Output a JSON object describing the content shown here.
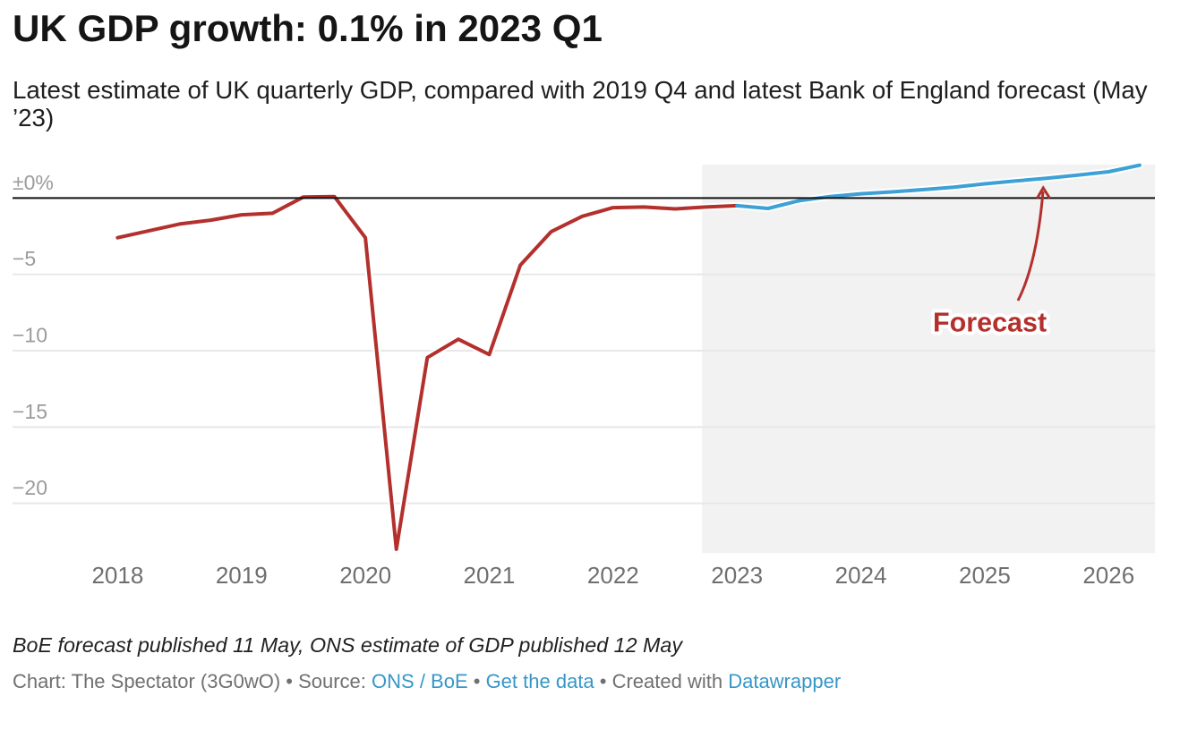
{
  "header": {
    "title": "UK GDP growth: 0.1% in 2023 Q1",
    "subtitle": "Latest estimate of UK quarterly GDP, compared with 2019 Q4 and latest Bank of England forecast (May ’23)"
  },
  "chart_data": {
    "type": "line",
    "unit": "%",
    "x_quarterly": true,
    "x_start": "2018 Q1",
    "series": [
      {
        "name": "ONS estimate",
        "color": "#b3302c",
        "start_index": 0,
        "quarters_from": "2018 Q1",
        "values": [
          -2.6,
          -2.15,
          -1.7,
          -1.45,
          -1.1,
          -1.0,
          0.07,
          0.1,
          -2.6,
          -23.0,
          -10.45,
          -9.25,
          -10.25,
          -4.4,
          -2.2,
          -1.2,
          -0.63,
          -0.59,
          -0.71,
          -0.59,
          -0.5
        ]
      },
      {
        "name": "Bank of England forecast",
        "color": "#3da1d5",
        "start_index": 20,
        "quarters_from": "2023 Q1",
        "values": [
          -0.5,
          -0.68,
          -0.18,
          0.1,
          0.28,
          0.4,
          0.55,
          0.71,
          0.93,
          1.12,
          1.3,
          1.5,
          1.72,
          2.15
        ]
      }
    ],
    "x_ticks": [
      "2018",
      "2019",
      "2020",
      "2021",
      "2022",
      "2023",
      "2024",
      "2025",
      "2026"
    ],
    "y_ticks": [
      {
        "label": "±0%",
        "value": 0
      },
      {
        "label": "−5",
        "value": -5
      },
      {
        "label": "−10",
        "value": -10
      },
      {
        "label": "−15",
        "value": -15
      },
      {
        "label": "−20",
        "value": -20
      }
    ],
    "ylim": [
      2.19,
      -23.26
    ],
    "grid": true,
    "zero_line": true,
    "highlight_region": {
      "from_index": 18.87,
      "to_index": 33.5
    },
    "annotation": {
      "text": "Forecast",
      "color": "#b3302c"
    }
  },
  "footer": {
    "note": "BoE forecast published 11 May, ONS estimate of GDP published 12 May",
    "attribution": {
      "prefix": "Chart: The Spectator (3G0wO) • Source: ",
      "source_link": "ONS / BoE",
      "sep1": " • ",
      "data_link": "Get the data",
      "sep2": " • Created with ",
      "tool_link": "Datawrapper"
    }
  },
  "colors": {
    "actual_line": "#b3302c",
    "forecast_line": "#3da1d5",
    "zero_line": "#111111",
    "gridline": "#e8e8e8",
    "highlight_fill": "#f2f2f2",
    "y_tick_label": "#9b9b9b",
    "x_tick_label": "#6f6f6f",
    "link": "#3697c8"
  }
}
